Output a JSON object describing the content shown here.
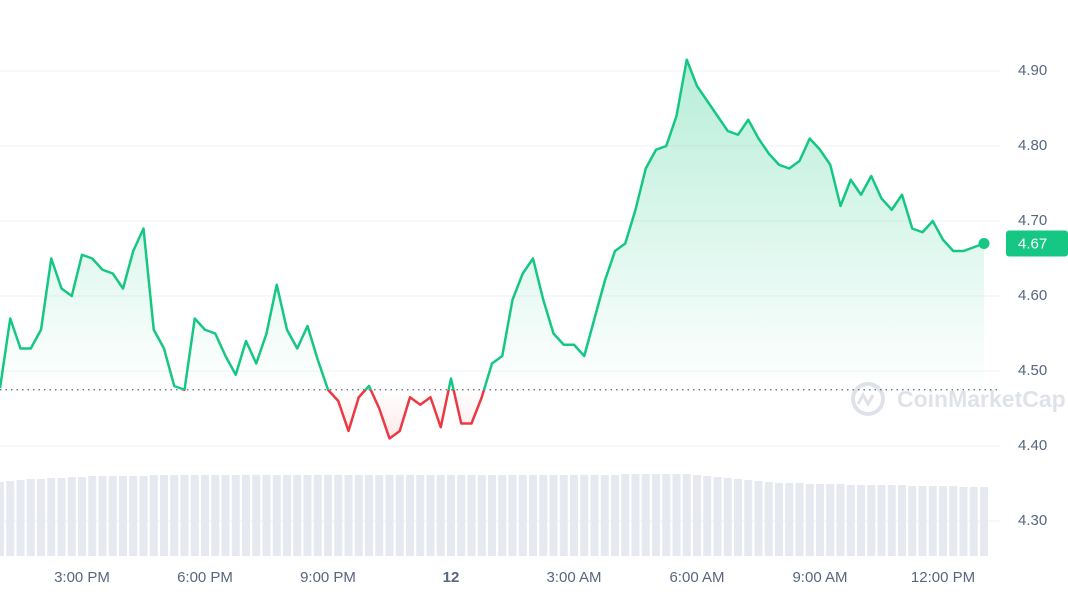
{
  "chart_data": {
    "type": "line",
    "values": [
      4.477,
      4.57,
      4.53,
      4.53,
      4.555,
      4.65,
      4.61,
      4.6,
      4.655,
      4.65,
      4.635,
      4.63,
      4.61,
      4.66,
      4.69,
      4.555,
      4.53,
      4.48,
      4.475,
      4.57,
      4.555,
      4.55,
      4.52,
      4.495,
      4.54,
      4.51,
      4.55,
      4.615,
      4.555,
      4.53,
      4.56,
      4.515,
      4.475,
      4.46,
      4.42,
      4.465,
      4.48,
      4.45,
      4.41,
      4.42,
      4.465,
      4.455,
      4.465,
      4.425,
      4.49,
      4.43,
      4.43,
      4.465,
      4.51,
      4.52,
      4.595,
      4.63,
      4.65,
      4.595,
      4.55,
      4.535,
      4.535,
      4.52,
      4.57,
      4.62,
      4.66,
      4.67,
      4.715,
      4.77,
      4.795,
      4.8,
      4.84,
      4.915,
      4.88,
      4.86,
      4.84,
      4.82,
      4.815,
      4.835,
      4.81,
      4.79,
      4.775,
      4.77,
      4.78,
      4.81,
      4.795,
      4.775,
      4.72,
      4.755,
      4.735,
      4.76,
      4.73,
      4.715,
      4.735,
      4.69,
      4.685,
      4.7,
      4.675,
      4.66,
      4.66,
      4.665,
      4.67
    ],
    "volume": [
      74,
      75,
      76,
      77,
      77,
      78,
      78,
      79,
      79,
      80,
      80,
      80,
      80,
      80,
      80,
      81,
      81,
      81,
      81,
      81,
      81,
      81,
      81,
      81,
      81,
      81,
      81,
      81,
      81,
      81,
      81,
      81,
      81,
      81,
      81,
      81,
      81,
      81,
      81,
      81,
      81,
      81,
      81,
      81,
      81,
      81,
      81,
      81,
      81,
      81,
      81,
      81,
      81,
      81,
      81,
      81,
      81,
      81,
      81,
      81,
      81,
      82,
      82,
      82,
      82,
      82,
      82,
      82,
      81,
      80,
      79,
      78,
      77,
      76,
      75,
      74,
      73,
      73,
      73,
      72,
      72,
      72,
      72,
      71,
      71,
      71,
      71,
      71,
      71,
      70,
      70,
      70,
      70,
      70,
      69,
      69,
      69
    ],
    "color_up": "#16c784",
    "color_down": "#ea3943",
    "volume_color": "#e6e9ef",
    "baseline": 4.475,
    "ylim": [
      4.26,
      4.99
    ],
    "yticks": [
      {
        "value": 4.3,
        "label": "4.30"
      },
      {
        "value": 4.4,
        "label": "4.40"
      },
      {
        "value": 4.5,
        "label": "4.50"
      },
      {
        "value": 4.6,
        "label": "4.60"
      },
      {
        "value": 4.7,
        "label": "4.70"
      },
      {
        "value": 4.8,
        "label": "4.80"
      },
      {
        "value": 4.9,
        "label": "4.90"
      }
    ],
    "xticks": [
      {
        "value": 8,
        "label": "3:00 PM"
      },
      {
        "value": 20,
        "label": "6:00 PM"
      },
      {
        "value": 32,
        "label": "9:00 PM"
      },
      {
        "value": 44,
        "label": "12"
      },
      {
        "value": 56,
        "label": "3:00 AM"
      },
      {
        "value": 68,
        "label": "6:00 AM"
      },
      {
        "value": 80,
        "label": "9:00 AM"
      },
      {
        "value": 92,
        "label": "12:00 PM"
      }
    ],
    "grid": true,
    "watermark": "CoinMarketCap"
  }
}
